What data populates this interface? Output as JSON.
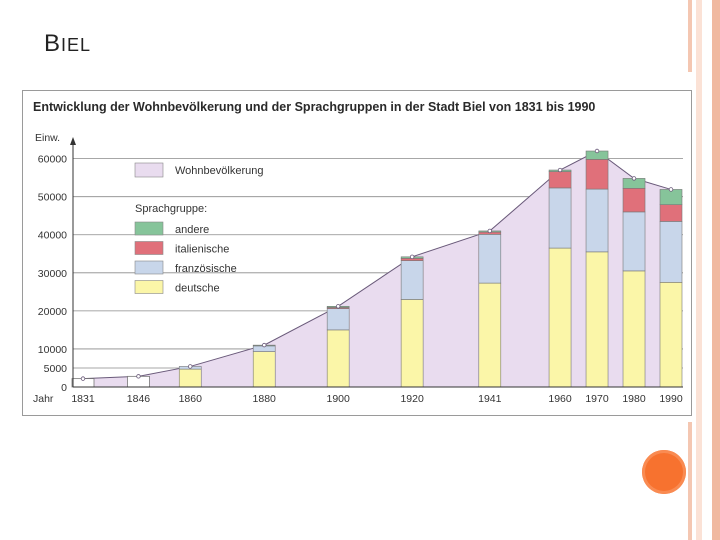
{
  "slide": {
    "title_first": "B",
    "title_rest": "IEL"
  },
  "colors": {
    "population": "#e9dcef",
    "population_line": "#6a5a7a",
    "andere": "#86c49a",
    "italienische": "#e0707a",
    "franzoesische": "#c8d6ea",
    "deutsche": "#fbf6a8",
    "accent_dot": "#f7722f"
  },
  "chart_data": {
    "type": "bar",
    "title": "Entwicklung der Wohnbevölkerung und der Sprachgruppen in der Stadt Biel von 1831 bis 1990",
    "ylabel": "Einw.",
    "xlabel": "Jahr",
    "ylim": [
      0,
      62000
    ],
    "yticks": [
      {
        "value": 0,
        "label": "0"
      },
      {
        "value": 5000,
        "label": "5000"
      },
      {
        "value": 10000,
        "label": "10000"
      },
      {
        "value": 20000,
        "label": "20000"
      },
      {
        "value": 30000,
        "label": "30000"
      },
      {
        "value": 40000,
        "label": "40000"
      },
      {
        "value": 50000,
        "label": "50000"
      },
      {
        "value": 60000,
        "label": "60000"
      }
    ],
    "categories": [
      "1831",
      "1846",
      "1860",
      "1880",
      "1900",
      "1920",
      "1941",
      "1960",
      "1970",
      "1980",
      "1990"
    ],
    "population": [
      2200,
      2800,
      5400,
      11000,
      21200,
      34200,
      41000,
      57000,
      62000,
      54800,
      51900
    ],
    "series": [
      {
        "key": "deutsche",
        "name": "deutsche",
        "values": [
          0,
          0,
          4700,
          9300,
          15000,
          23000,
          27300,
          36500,
          35500,
          30500,
          27500
        ]
      },
      {
        "key": "franzoesische",
        "name": "französische",
        "values": [
          0,
          0,
          700,
          1500,
          5600,
          10200,
          12800,
          15800,
          16500,
          15500,
          16000
        ]
      },
      {
        "key": "italienische",
        "name": "italienische",
        "values": [
          0,
          0,
          0,
          0,
          300,
          600,
          600,
          4300,
          7800,
          6200,
          4400
        ]
      },
      {
        "key": "andere",
        "name": "andere",
        "values": [
          0,
          0,
          0,
          200,
          300,
          400,
          300,
          400,
          2200,
          2600,
          4000
        ]
      }
    ],
    "legend": {
      "population_label": "Wohnbevölkerung",
      "group_heading": "Sprachgruppe:",
      "items": [
        {
          "key": "andere",
          "label": "andere"
        },
        {
          "key": "italienische",
          "label": "italienische"
        },
        {
          "key": "franzoesische",
          "label": "französische"
        },
        {
          "key": "deutsche",
          "label": "deutsche"
        }
      ]
    }
  }
}
